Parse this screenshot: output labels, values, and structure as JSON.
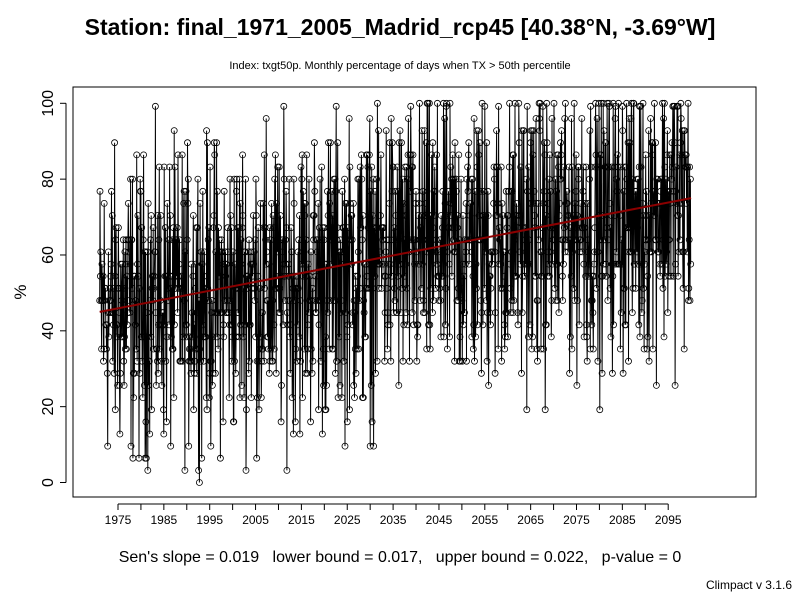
{
  "title": "Station: final_1971_2005_Madrid_rcp45 [40.38°N, -3.69°W]",
  "subtitle": "Index: txgt50p. Monthly percentage of days when TX > 50th percentile",
  "footer": "Sen's slope = 0.019   lower bound = 0.017,   upper bound = 0.022,   p-value = 0",
  "credit": "Climpact v 3.1.6",
  "chart_data": {
    "type": "line",
    "title": "Station: final_1971_2005_Madrid_rcp45 [40.38°N, -3.69°W]",
    "subtitle": "Index: txgt50p. Monthly percentage of days when TX > 50th percentile",
    "xlabel": "",
    "ylabel": "%",
    "x_range": [
      1971,
      2100
    ],
    "ylim": [
      0,
      100
    ],
    "x_ticks": [
      "1975",
      "1985",
      "1995",
      "2005",
      "2015",
      "2025",
      "2035",
      "2045",
      "2055",
      "2065",
      "2075",
      "2085",
      "2095"
    ],
    "y_ticks": [
      "0",
      "20",
      "40",
      "60",
      "80",
      "100"
    ],
    "markers": "open-circles",
    "grid": false,
    "series": [
      {
        "style": "line+points",
        "color": "#000000",
        "description_period_mean": [
          {
            "years": "1971-1980",
            "approx_mean": 46
          },
          {
            "years": "1981-1990",
            "approx_mean": 48
          },
          {
            "years": "1991-2000",
            "approx_mean": 50
          },
          {
            "years": "2001-2010",
            "approx_mean": 52
          },
          {
            "years": "2011-2020",
            "approx_mean": 54
          },
          {
            "years": "2021-2030",
            "approx_mean": 56
          },
          {
            "years": "2031-2040",
            "approx_mean": 60
          },
          {
            "years": "2041-2050",
            "approx_mean": 62
          },
          {
            "years": "2051-2060",
            "approx_mean": 64
          },
          {
            "years": "2061-2070",
            "approx_mean": 66
          },
          {
            "years": "2071-2080",
            "approx_mean": 69
          },
          {
            "years": "2081-2090",
            "approx_mean": 71
          },
          {
            "years": "2091-2100",
            "approx_mean": 74
          }
        ]
      }
    ],
    "trend_line": {
      "color": "#8b0000",
      "y_at_x_start": 45,
      "y_at_x_end": 75,
      "x_start": 1971,
      "x_end": 2100
    }
  }
}
